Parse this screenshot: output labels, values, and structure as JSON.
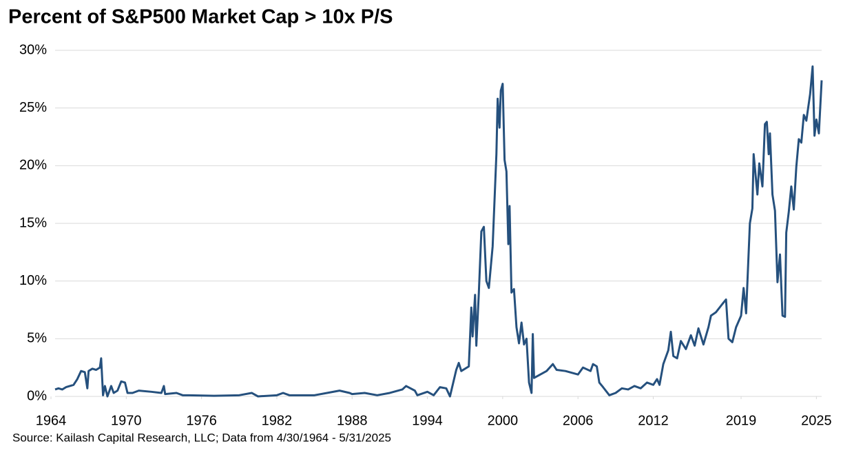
{
  "chart_data": {
    "type": "line",
    "title": "Percent of S&P500 Market Cap > 10x P/S",
    "source": "Source: Kailash Capital Research, LLC; Data from 4/30/1964 - 5/31/2025",
    "x": [
      1964.33,
      1964.6,
      1964.9,
      1965.2,
      1965.5,
      1965.8,
      1966.1,
      1966.4,
      1966.7,
      1966.9,
      1967.0,
      1967.3,
      1967.6,
      1967.9,
      1968.0,
      1968.15,
      1968.3,
      1968.5,
      1968.8,
      1969.0,
      1969.3,
      1969.6,
      1969.9,
      1970.1,
      1970.5,
      1971,
      1972,
      1972.8,
      1973,
      1973.1,
      1974,
      1974.5,
      1975,
      1977,
      1979,
      1980,
      1980.5,
      1982,
      1982.5,
      1983,
      1985,
      1986,
      1987,
      1987.8,
      1988,
      1989,
      1990,
      1991,
      1992,
      1992.3,
      1993,
      1993.2,
      1994,
      1994.5,
      1995,
      1995.5,
      1995.8,
      1996.3,
      1996.5,
      1996.7,
      1997.3,
      1997.5,
      1997.6,
      1997.8,
      1997.9,
      1998.1,
      1998.3,
      1998.5,
      1998.7,
      1998.9,
      1999.2,
      1999.5,
      1999.6,
      1999.75,
      1999.85,
      2000.0,
      2000.15,
      2000.3,
      2000.45,
      2000.55,
      2000.7,
      2000.9,
      2001.1,
      2001.3,
      2001.5,
      2001.7,
      2001.9,
      2002.1,
      2002.3,
      2002.4,
      2002.5,
      2003,
      2003.5,
      2004,
      2004.3,
      2005,
      2006,
      2006.4,
      2007,
      2007.2,
      2007.5,
      2007.7,
      2008,
      2008.5,
      2009,
      2009.5,
      2010,
      2010.5,
      2011,
      2011.5,
      2012,
      2012.3,
      2012.5,
      2012.8,
      2013.2,
      2013.4,
      2013.6,
      2013.9,
      2014.2,
      2014.6,
      2015,
      2015.3,
      2015.6,
      2016,
      2016.4,
      2016.6,
      2017,
      2017.5,
      2017.8,
      2018.0,
      2018.3,
      2018.6,
      2019,
      2019.2,
      2019.4,
      2019.7,
      2019.9,
      2020.0,
      2020.3,
      2020.45,
      2020.7,
      2020.9,
      2021.05,
      2021.2,
      2021.3,
      2021.5,
      2021.7,
      2021.9,
      2022.1,
      2022.3,
      2022.5,
      2022.6,
      2022.8,
      2023,
      2023.2,
      2023.4,
      2023.6,
      2023.8,
      2024,
      2024.2,
      2024.5,
      2024.7,
      2024.85,
      2025.0,
      2025.2,
      2025.42
    ],
    "series": [
      {
        "color": "#25507d",
        "values": [
          0.6,
          0.7,
          0.6,
          0.8,
          0.9,
          1.0,
          1.5,
          2.2,
          2.1,
          0.7,
          2.2,
          2.4,
          2.3,
          2.5,
          3.3,
          0.1,
          0.9,
          0.0,
          0.9,
          0.3,
          0.5,
          1.3,
          1.2,
          0.3,
          0.3,
          0.5,
          0.4,
          0.3,
          0.9,
          0.2,
          0.3,
          0.1,
          0.1,
          0.05,
          0.1,
          0.3,
          0.0,
          0.1,
          0.3,
          0.1,
          0.1,
          0.3,
          0.5,
          0.3,
          0.2,
          0.3,
          0.1,
          0.3,
          0.6,
          0.9,
          0.5,
          0.1,
          0.4,
          0.1,
          0.8,
          0.7,
          0.0,
          2.3,
          2.9,
          2.2,
          2.6,
          7.7,
          5.2,
          8.8,
          4.4,
          9.0,
          14.3,
          14.7,
          10.0,
          9.4,
          13,
          21,
          25.8,
          23.3,
          26.5,
          27.1,
          20.5,
          19.5,
          13.2,
          16.5,
          9.0,
          9.3,
          6.0,
          4.6,
          6.4,
          4.5,
          5.0,
          1.2,
          0.3,
          5.4,
          1.6,
          1.9,
          2.2,
          2.8,
          2.3,
          2.2,
          1.9,
          2.5,
          2.2,
          2.8,
          2.6,
          1.2,
          0.8,
          0.1,
          0.3,
          0.7,
          0.6,
          0.9,
          0.7,
          1.2,
          1.0,
          1.5,
          1.0,
          2.8,
          4.0,
          5.6,
          3.5,
          3.3,
          4.8,
          4.1,
          5.3,
          4.4,
          5.9,
          4.5,
          6.0,
          7.0,
          7.3,
          8.0,
          8.4,
          5.0,
          4.7,
          6.0,
          7.0,
          9.4,
          7.2,
          15,
          16.3,
          21,
          17.5,
          20.2,
          18.2,
          23.6,
          23.8,
          21.0,
          22.8,
          17.5,
          16.1,
          9.9,
          12.3,
          7.0,
          6.9,
          14.2,
          16.0,
          18.2,
          16.2,
          19.9,
          22.3,
          22.0,
          24.4,
          23.9,
          26.2,
          28.6,
          22.6,
          24.0,
          22.8,
          27.4
        ]
      }
    ],
    "xlim": [
      1964.33,
      2025.42
    ],
    "xticks": [
      1964,
      1970,
      1976,
      1982,
      1988,
      1994,
      2000,
      2006,
      2012,
      2019,
      2025
    ],
    "ylim": [
      0,
      30
    ],
    "yticks": [
      {
        "value": 0,
        "label": "0%"
      },
      {
        "value": 5,
        "label": "5%"
      },
      {
        "value": 10,
        "label": "10%"
      },
      {
        "value": 15,
        "label": "15%"
      },
      {
        "value": 20,
        "label": "20%"
      },
      {
        "value": 25,
        "label": "25%"
      },
      {
        "value": 30,
        "label": "30%"
      }
    ],
    "grid": true
  }
}
